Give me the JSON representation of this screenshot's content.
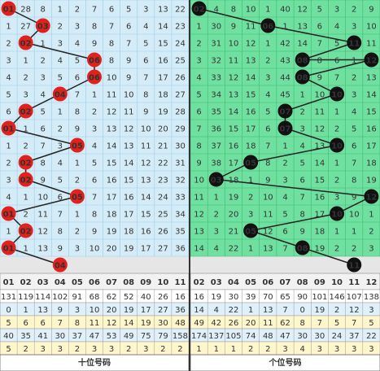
{
  "left": {
    "columns": [
      "01",
      "02",
      "03",
      "04",
      "05",
      "06",
      "07",
      "08",
      "09",
      "10",
      "11"
    ],
    "rows": [
      [
        "01",
        "28",
        "8",
        "1",
        "2",
        "7",
        "6",
        "5",
        "3",
        "13",
        "22"
      ],
      [
        "1",
        "27",
        "03",
        "2",
        "3",
        "8",
        "7",
        "6",
        "4",
        "14",
        "23"
      ],
      [
        "2",
        "02",
        "1",
        "3",
        "4",
        "9",
        "8",
        "7",
        "5",
        "15",
        "24"
      ],
      [
        "3",
        "1",
        "2",
        "4",
        "5",
        "06",
        "8",
        "9",
        "6",
        "16",
        "25"
      ],
      [
        "4",
        "2",
        "3",
        "5",
        "6",
        "06",
        "10",
        "9",
        "7",
        "17",
        "26"
      ],
      [
        "5",
        "3",
        "4",
        "04",
        "7",
        "1",
        "11",
        "10",
        "8",
        "18",
        "27"
      ],
      [
        "6",
        "02",
        "5",
        "1",
        "8",
        "2",
        "12",
        "11",
        "9",
        "19",
        "28"
      ],
      [
        "01",
        "1",
        "6",
        "2",
        "9",
        "3",
        "13",
        "12",
        "10",
        "20",
        "29"
      ],
      [
        "1",
        "2",
        "7",
        "3",
        "05",
        "4",
        "14",
        "13",
        "11",
        "21",
        "30"
      ],
      [
        "2",
        "02",
        "8",
        "4",
        "1",
        "5",
        "15",
        "14",
        "12",
        "22",
        "31"
      ],
      [
        "3",
        "02",
        "9",
        "5",
        "2",
        "6",
        "16",
        "15",
        "13",
        "23",
        "32"
      ],
      [
        "4",
        "1",
        "10",
        "6",
        "05",
        "7",
        "17",
        "16",
        "14",
        "24",
        "33"
      ],
      [
        "01",
        "2",
        "11",
        "7",
        "1",
        "8",
        "18",
        "17",
        "15",
        "25",
        "34"
      ],
      [
        "1",
        "02",
        "12",
        "8",
        "2",
        "9",
        "19",
        "18",
        "16",
        "26",
        "35"
      ],
      [
        "01",
        "1",
        "13",
        "9",
        "3",
        "10",
        "20",
        "19",
        "17",
        "27",
        "36"
      ],
      [
        null,
        null,
        null,
        "04",
        null,
        null,
        null,
        null,
        null,
        null,
        null
      ]
    ],
    "stats": [
      [
        "131",
        "119",
        "114",
        "102",
        "91",
        "68",
        "62",
        "52",
        "40",
        "26",
        "16"
      ],
      [
        "0",
        "1",
        "13",
        "9",
        "3",
        "10",
        "20",
        "19",
        "17",
        "27",
        "36"
      ],
      [
        "5",
        "6",
        "6",
        "7",
        "8",
        "11",
        "12",
        "14",
        "19",
        "30",
        "48"
      ],
      [
        "40",
        "35",
        "41",
        "30",
        "37",
        "47",
        "53",
        "49",
        "75",
        "79",
        "158"
      ],
      [
        "5",
        "2",
        "3",
        "3",
        "2",
        "3",
        "3",
        "2",
        "3",
        "2",
        "2"
      ]
    ],
    "label": "十位号码"
  },
  "right": {
    "columns": [
      "02",
      "03",
      "04",
      "05",
      "06",
      "07",
      "08",
      "09",
      "10",
      "11",
      "12"
    ],
    "rows": [
      [
        "02",
        "4",
        "8",
        "10",
        "1",
        "40",
        "12",
        "5",
        "3",
        "2",
        "9"
      ],
      [
        "1",
        "30",
        "9",
        "11",
        "06",
        "1",
        "13",
        "6",
        "4",
        "3",
        "10"
      ],
      [
        "2",
        "31",
        "10",
        "12",
        "1",
        "42",
        "14",
        "7",
        "5",
        "11",
        "11"
      ],
      [
        "3",
        "32",
        "11",
        "13",
        "2",
        "43",
        "08",
        "8",
        "6",
        "1",
        "12"
      ],
      [
        "4",
        "33",
        "12",
        "14",
        "3",
        "44",
        "08",
        "9",
        "7",
        "2",
        "13"
      ],
      [
        "5",
        "34",
        "13",
        "15",
        "4",
        "45",
        "1",
        "10",
        "10",
        "3",
        "14"
      ],
      [
        "6",
        "35",
        "14",
        "16",
        "5",
        "07",
        "2",
        "11",
        "1",
        "4",
        "15"
      ],
      [
        "7",
        "36",
        "15",
        "17",
        "6",
        "07",
        "3",
        "12",
        "2",
        "5",
        "16"
      ],
      [
        "8",
        "37",
        "16",
        "18",
        "7",
        "1",
        "4",
        "13",
        "10",
        "6",
        "17"
      ],
      [
        "9",
        "38",
        "17",
        "05",
        "8",
        "2",
        "5",
        "14",
        "1",
        "7",
        "18"
      ],
      [
        "10",
        "03",
        "18",
        "1",
        "9",
        "3",
        "6",
        "15",
        "2",
        "8",
        "19"
      ],
      [
        "11",
        "1",
        "19",
        "2",
        "10",
        "4",
        "7",
        "16",
        "3",
        "9",
        "12"
      ],
      [
        "12",
        "2",
        "20",
        "3",
        "11",
        "5",
        "8",
        "17",
        "10",
        "10",
        "1"
      ],
      [
        "13",
        "3",
        "21",
        "05",
        "12",
        "6",
        "9",
        "18",
        "1",
        "1",
        "2"
      ],
      [
        "14",
        "4",
        "22",
        "1",
        "13",
        "7",
        "08",
        "19",
        "2",
        "2",
        "3"
      ],
      [
        null,
        null,
        null,
        null,
        null,
        null,
        null,
        null,
        null,
        "11",
        null
      ]
    ],
    "stats": [
      [
        "16",
        "19",
        "30",
        "39",
        "70",
        "65",
        "90",
        "101",
        "146",
        "107",
        "138"
      ],
      [
        "14",
        "4",
        "22",
        "1",
        "13",
        "7",
        "0",
        "19",
        "2",
        "12",
        "3"
      ],
      [
        "49",
        "42",
        "26",
        "20",
        "11",
        "62",
        "8",
        "7",
        "5",
        "7",
        "5"
      ],
      [
        "174",
        "137",
        "105",
        "74",
        "48",
        "47",
        "30",
        "30",
        "24",
        "37",
        "22"
      ],
      [
        "1",
        "1",
        "1",
        "2",
        "2",
        "3",
        "4",
        "3",
        "3",
        "3",
        "3"
      ]
    ],
    "label": "个位号码"
  }
}
